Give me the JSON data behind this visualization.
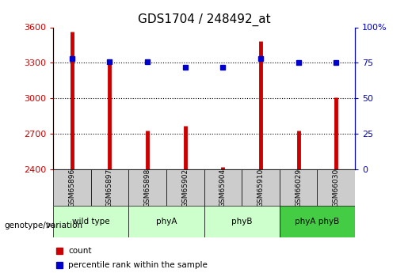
{
  "title": "GDS1704 / 248492_at",
  "samples": [
    "GSM65896",
    "GSM65897",
    "GSM65898",
    "GSM65902",
    "GSM65904",
    "GSM65910",
    "GSM66029",
    "GSM66030"
  ],
  "counts": [
    3560,
    3310,
    2730,
    2770,
    2420,
    3480,
    2730,
    3010
  ],
  "percentiles": [
    78,
    76,
    76,
    72,
    72,
    78,
    75,
    75
  ],
  "groups": [
    {
      "label": "wild type",
      "samples": [
        0,
        1
      ],
      "color": "#ccffcc"
    },
    {
      "label": "phyA",
      "samples": [
        2,
        3
      ],
      "color": "#ccffcc"
    },
    {
      "label": "phyB",
      "samples": [
        4,
        5
      ],
      "color": "#ccffcc"
    },
    {
      "label": "phyA phyB",
      "samples": [
        6,
        7
      ],
      "color": "#44cc44"
    }
  ],
  "ylim_left": [
    2400,
    3600
  ],
  "ylim_right": [
    0,
    100
  ],
  "yticks_left": [
    2400,
    2700,
    3000,
    3300,
    3600
  ],
  "yticks_right": [
    0,
    25,
    50,
    75,
    100
  ],
  "bar_color": "#cc0000",
  "dot_color": "#0000cc",
  "bar_width": 0.4,
  "grid_color": "#000000",
  "background_color": "#ffffff",
  "label_color_left": "#cc0000",
  "label_color_right": "#0000cc",
  "group_header_color": "#cccccc",
  "group_colors": [
    "#ccffcc",
    "#ccffcc",
    "#ccffcc",
    "#44cc44"
  ]
}
